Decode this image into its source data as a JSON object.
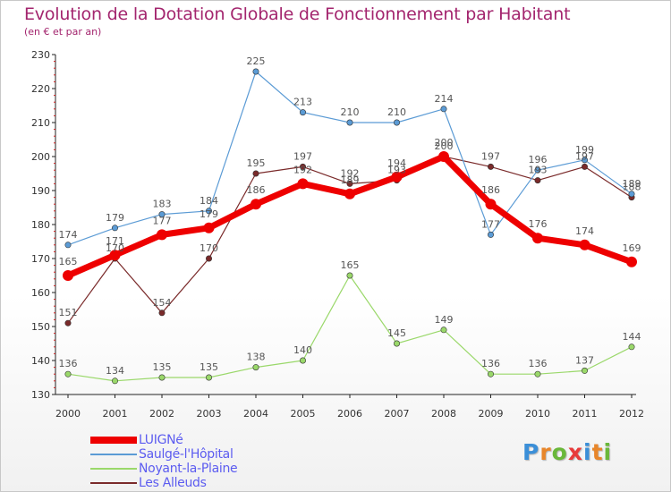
{
  "header": {
    "title": "Evolution de la Dotation Globale de Fonctionnement par Habitant",
    "subtitle": "(en € et par an)"
  },
  "logo": {
    "text": "Proxiti",
    "letter_colors": [
      "#3b8fd8",
      "#e8862a",
      "#6ab83a",
      "#e83a3a",
      "#3b8fd8",
      "#e8862a",
      "#6ab83a"
    ]
  },
  "chart_data": {
    "type": "line",
    "title": "Evolution de la Dotation Globale de Fonctionnement par Habitant",
    "subtitle": "(en € et par an)",
    "x": [
      2000,
      2001,
      2002,
      2003,
      2004,
      2005,
      2006,
      2007,
      2008,
      2009,
      2010,
      2011,
      2012
    ],
    "xlabel": "",
    "ylabel": "",
    "ylim": [
      130,
      230
    ],
    "yticks": [
      130,
      140,
      150,
      160,
      170,
      180,
      190,
      200,
      210,
      220,
      230
    ],
    "grid": false,
    "legend_position": "bottom-left",
    "series": [
      {
        "name": "LUIGNé",
        "color": "#ee0000",
        "values": [
          165,
          171,
          177,
          179,
          186,
          192,
          189,
          194,
          200,
          186,
          176,
          174,
          169
        ]
      },
      {
        "name": "Saulgé-l'Hôpital",
        "color": "#5b9bd5",
        "values": [
          174,
          179,
          183,
          184,
          225,
          213,
          210,
          210,
          214,
          177,
          196,
          199,
          189
        ]
      },
      {
        "name": "Noyant-la-Plaine",
        "color": "#9ad86a",
        "values": [
          136,
          134,
          135,
          135,
          138,
          140,
          165,
          145,
          149,
          136,
          136,
          137,
          144
        ]
      },
      {
        "name": "Les Alleuds",
        "color": "#7a2a2a",
        "values": [
          151,
          170,
          154,
          170,
          195,
          197,
          192,
          193,
          200,
          197,
          193,
          197,
          188
        ]
      }
    ]
  }
}
